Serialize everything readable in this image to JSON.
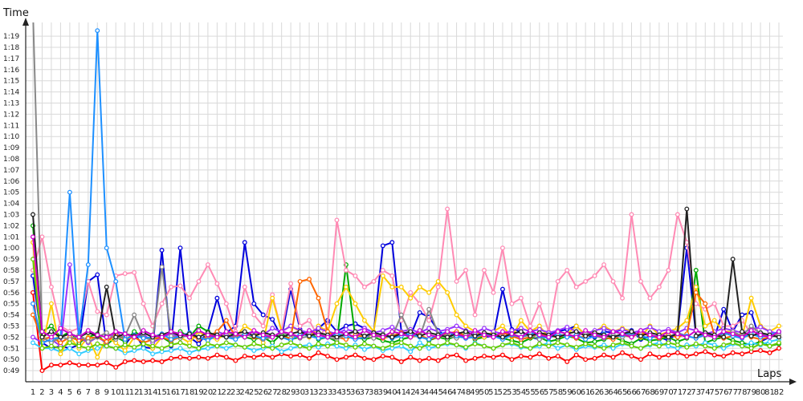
{
  "chart_data": {
    "type": "line",
    "title": "",
    "xlabel": "Laps",
    "ylabel": "Time",
    "grid": true,
    "legend": "none",
    "x_categories": [
      "1",
      "2",
      "3",
      "4",
      "5",
      "6",
      "7",
      "8",
      "9",
      "10",
      "11",
      "12",
      "13",
      "14",
      "15",
      "16",
      "17",
      "18",
      "19",
      "20",
      "21",
      "22",
      "23",
      "24",
      "25",
      "26",
      "27",
      "28",
      "29",
      "30",
      "31",
      "32",
      "33",
      "34",
      "35",
      "36",
      "37",
      "38",
      "39",
      "40",
      "41",
      "42",
      "43",
      "44",
      "45",
      "46",
      "47",
      "48",
      "49",
      "50",
      "51",
      "52",
      "53",
      "54",
      "55",
      "56",
      "57",
      "58",
      "59",
      "60",
      "61",
      "62",
      "63",
      "64",
      "65",
      "66",
      "67",
      "68",
      "69",
      "70",
      "71",
      "72",
      "73",
      "74",
      "75",
      "76",
      "77",
      "78",
      "79",
      "80",
      "81",
      "82"
    ],
    "y_ticks": [
      "0:49",
      "0:50",
      "0:51",
      "0:52",
      "0:53",
      "0:54",
      "0:55",
      "0:56",
      "0:57",
      "0:58",
      "0:59",
      "1:00",
      "1:01",
      "1:02",
      "1:03",
      "1:04",
      "1:05",
      "1:06",
      "1:07",
      "1:08",
      "1:09",
      "1:10",
      "1:11",
      "1:12",
      "1:13",
      "1:14",
      "1:15",
      "1:16",
      "1:17",
      "1:18",
      "1:19"
    ],
    "ylim_seconds": [
      48.2,
      81.3
    ],
    "series": [
      {
        "color": "#ff0000",
        "values": [
          56.0,
          49.0,
          49.5,
          49.5,
          49.7,
          49.5,
          49.5,
          49.5,
          49.7,
          49.3,
          49.8,
          49.9,
          49.8,
          49.9,
          49.8,
          50.1,
          50.2,
          50.1,
          50.2,
          50.1,
          50.4,
          50.2,
          49.9,
          50.3,
          50.2,
          50.4,
          50.2,
          50.5,
          50.3,
          50.4,
          50.1,
          50.6,
          50.3,
          50.0,
          50.2,
          50.4,
          50.1,
          50.0,
          50.3,
          50.2,
          49.8,
          50.2,
          49.9,
          50.1,
          49.9,
          50.3,
          50.4,
          49.9,
          50.1,
          50.3,
          50.2,
          50.4,
          50.0,
          50.3,
          50.2,
          50.5,
          50.1,
          50.3,
          49.8,
          50.4,
          50.0,
          50.1,
          50.4,
          50.2,
          50.6,
          50.3,
          50.0,
          50.5,
          50.2,
          50.4,
          50.6,
          50.3,
          50.5,
          50.7,
          50.4,
          50.3,
          50.6,
          50.5,
          50.7,
          50.8,
          50.6,
          51.0
        ]
      },
      {
        "color": "#0000dd",
        "values": [
          57.5,
          51.5,
          51.0,
          51.2,
          51.0,
          51.3,
          57.0,
          57.6,
          51.2,
          51.0,
          51.3,
          52.4,
          51.1,
          51.0,
          59.8,
          51.2,
          60.0,
          52.0,
          51.4,
          52.5,
          55.5,
          52.4,
          53.0,
          60.5,
          55.0,
          54.0,
          53.6,
          52.0,
          56.3,
          52.7,
          52.0,
          52.8,
          53.5,
          52.5,
          53.0,
          53.2,
          52.8,
          52.4,
          60.2,
          60.5,
          52.5,
          52.1,
          54.2,
          53.8,
          52.6,
          52.0,
          52.4,
          51.9,
          52.2,
          52.0,
          52.1,
          56.3,
          52.7,
          52.5,
          52.0,
          51.8,
          52.2,
          52.5,
          52.7,
          53.0,
          52.2,
          52.0,
          52.5,
          52.4,
          52.7,
          52.6,
          51.8,
          52.1,
          52.0,
          51.7,
          52.4,
          60.0,
          52.1,
          52.4,
          52.0,
          54.5,
          52.5,
          54.0,
          54.2,
          51.6,
          52.0,
          52.5
        ]
      },
      {
        "color": "#00aa00",
        "values": [
          62.0,
          52.5,
          53.0,
          52.0,
          52.5,
          51.5,
          52.0,
          52.3,
          51.3,
          52.0,
          51.6,
          52.5,
          52.0,
          51.8,
          52.0,
          51.5,
          52.5,
          52.0,
          53.0,
          52.5,
          52.0,
          52.5,
          52.2,
          52.0,
          51.8,
          52.0,
          51.5,
          52.3,
          51.8,
          52.0,
          52.5,
          51.8,
          52.0,
          51.6,
          58.5,
          52.0,
          51.8,
          52.0,
          51.7,
          51.5,
          51.8,
          52.0,
          52.2,
          51.7,
          52.0,
          51.8,
          52.1,
          52.3,
          51.8,
          52.0,
          52.4,
          51.9,
          51.7,
          51.5,
          51.9,
          52.0,
          51.6,
          51.8,
          52.1,
          51.9,
          51.5,
          51.6,
          51.8,
          52.0,
          51.7,
          51.4,
          51.9,
          51.7,
          51.8,
          52.0,
          51.6,
          51.9,
          58.0,
          51.5,
          51.8,
          52.0,
          51.7,
          51.5,
          51.3,
          51.6,
          51.2,
          51.4
        ]
      },
      {
        "color": "#ff8ab4",
        "values": [
          58.0,
          61.0,
          56.5,
          53.0,
          52.5,
          52.8,
          57.0,
          54.3,
          54.0,
          57.5,
          57.7,
          57.8,
          55.0,
          53.0,
          55.0,
          56.5,
          56.6,
          55.5,
          57.0,
          58.5,
          56.8,
          55.0,
          52.5,
          56.5,
          54.0,
          53.0,
          55.8,
          52.5,
          56.8,
          53.0,
          53.5,
          52.0,
          53.0,
          62.5,
          58.0,
          57.5,
          56.5,
          57.0,
          58.0,
          57.5,
          53.5,
          56.0,
          55.0,
          53.5,
          56.5,
          63.5,
          57.0,
          58.0,
          54.0,
          58.0,
          56.0,
          60.0,
          55.0,
          55.5,
          53.0,
          55.0,
          52.5,
          57.0,
          58.0,
          56.5,
          57.0,
          57.5,
          58.5,
          57.0,
          55.5,
          63.0,
          57.0,
          55.5,
          56.5,
          58.0,
          63.0,
          60.5,
          55.0,
          54.5,
          55.0,
          53.0,
          53.0,
          53.5,
          52.3,
          53.0,
          52.5,
          52.0
        ]
      },
      {
        "color": "#33ccff",
        "values": [
          51.5,
          51.0,
          51.0,
          50.7,
          51.0,
          50.5,
          50.8,
          51.0,
          51.2,
          51.0,
          50.6,
          50.8,
          51.0,
          50.5,
          50.7,
          50.8,
          51.0,
          50.6,
          50.9,
          51.0,
          51.2,
          51.0,
          51.3,
          51.1,
          50.8,
          51.0,
          51.2,
          50.7,
          51.0,
          51.2,
          51.3,
          51.1,
          51.4,
          51.2,
          51.0,
          51.3,
          50.9,
          51.2,
          50.8,
          51.0,
          51.2,
          50.7,
          51.5,
          51.0,
          51.2,
          51.4,
          51.3,
          51.0,
          51.5,
          51.2,
          51.0,
          51.3,
          51.4,
          51.1,
          51.0,
          51.2,
          51.5,
          51.0,
          51.3,
          50.9,
          51.2,
          51.1,
          51.3,
          51.0,
          51.4,
          51.2,
          51.0,
          51.3,
          51.5,
          51.2,
          51.0,
          51.3,
          51.2,
          51.5,
          51.3,
          51.0,
          51.4,
          51.2,
          51.5,
          51.3,
          51.6,
          51.8
        ]
      },
      {
        "color": "#ffcc00",
        "values": [
          60.5,
          51.0,
          55.0,
          50.5,
          52.0,
          51.0,
          52.0,
          50.2,
          52.0,
          51.5,
          50.8,
          52.0,
          51.5,
          51.0,
          52.0,
          52.5,
          52.0,
          51.5,
          52.5,
          52.0,
          51.8,
          52.3,
          52.0,
          53.0,
          52.5,
          51.5,
          55.5,
          52.5,
          53.0,
          52.5,
          52.0,
          53.0,
          52.5,
          55.0,
          56.5,
          55.0,
          53.5,
          52.5,
          57.5,
          56.5,
          56.5,
          55.5,
          56.5,
          56.0,
          57.0,
          56.0,
          54.0,
          53.0,
          52.5,
          52.0,
          52.5,
          53.0,
          52.0,
          53.5,
          52.5,
          53.0,
          52.0,
          52.5,
          52.3,
          53.0,
          52.2,
          52.5,
          53.0,
          52.5,
          52.8,
          52.5,
          52.0,
          53.0,
          52.2,
          52.5,
          52.8,
          53.5,
          56.5,
          53.0,
          53.5,
          52.5,
          52.5,
          52.0,
          55.5,
          53.0,
          52.5,
          53.0
        ]
      },
      {
        "color": "#9933ff",
        "values": [
          52.0,
          51.5,
          51.8,
          51.2,
          58.5,
          52.0,
          51.5,
          52.0,
          51.5,
          52.5,
          51.8,
          52.0,
          52.3,
          51.5,
          52.0,
          52.3,
          52.0,
          52.4,
          52.0,
          51.8,
          52.5,
          52.2,
          52.0,
          52.3,
          52.5,
          52.2,
          52.8,
          52.5,
          53.0,
          52.6,
          52.4,
          52.8,
          52.5,
          52.3,
          52.7,
          52.5,
          52.8,
          52.4,
          52.6,
          52.9,
          52.5,
          52.7,
          52.4,
          52.8,
          52.5,
          52.7,
          53.0,
          52.6,
          52.4,
          52.8,
          52.5,
          52.3,
          52.6,
          52.8,
          52.5,
          52.7,
          52.4,
          52.6,
          52.9,
          52.5,
          52.3,
          52.6,
          52.8,
          52.5,
          52.7,
          52.4,
          52.6,
          52.9,
          52.5,
          52.7,
          52.4,
          52.8,
          52.6,
          52.3,
          52.5,
          52.8,
          52.6,
          52.4,
          52.7,
          52.9,
          52.5,
          52.3
        ]
      },
      {
        "color": "#ff6600",
        "values": [
          54.0,
          51.8,
          52.0,
          51.5,
          52.0,
          51.7,
          51.9,
          52.0,
          51.6,
          52.2,
          51.8,
          52.0,
          51.5,
          51.8,
          52.0,
          51.7,
          52.0,
          52.3,
          51.8,
          52.0,
          52.5,
          53.5,
          52.0,
          52.3,
          52.0,
          51.8,
          52.2,
          52.0,
          51.9,
          57.0,
          57.2,
          55.5,
          52.5,
          52.0,
          51.8,
          52.2,
          52.0,
          52.3,
          51.9,
          52.1,
          52.4,
          52.0,
          52.2,
          51.8,
          52.0,
          52.3,
          52.5,
          52.1,
          51.9,
          52.2,
          52.0,
          52.4,
          52.1,
          51.8,
          52.0,
          52.3,
          52.1,
          52.0,
          52.2,
          51.9,
          52.1,
          52.3,
          52.0,
          51.8,
          52.2,
          52.0,
          52.4,
          52.1,
          51.9,
          52.2,
          52.0,
          52.3,
          56.0,
          55.0,
          52.2,
          51.9,
          52.1,
          52.3,
          52.0,
          51.8,
          52.0,
          52.2
        ]
      },
      {
        "color": "#888888",
        "values": [
          81.3,
          52.0,
          51.5,
          52.0,
          51.8,
          52.2,
          51.6,
          52.0,
          52.4,
          51.8,
          52.1,
          54.0,
          52.0,
          51.7,
          58.3,
          52.1,
          51.9,
          52.3,
          52.0,
          51.8,
          52.2,
          52.0,
          51.9,
          52.3,
          52.1,
          51.8,
          52.0,
          52.4,
          52.2,
          51.9,
          52.1,
          52.3,
          52.0,
          51.8,
          52.2,
          52.5,
          52.1,
          51.9,
          52.3,
          52.0,
          54.0,
          52.2,
          52.0,
          54.5,
          52.3,
          52.1,
          51.9,
          52.2,
          52.0,
          52.4,
          52.1,
          51.9,
          52.3,
          52.0,
          52.2,
          51.8,
          52.1,
          52.3,
          52.0,
          52.2,
          52.4,
          52.1,
          51.9,
          52.2,
          52.0,
          52.3,
          52.1,
          51.9,
          52.2,
          52.0,
          52.4,
          52.1,
          51.9,
          52.3,
          52.0,
          52.2,
          52.5,
          52.1,
          53.0,
          52.3,
          52.0,
          52.2
        ]
      },
      {
        "color": "#1e90ff",
        "values": [
          55.0,
          51.5,
          51.8,
          52.0,
          65.0,
          52.0,
          58.5,
          79.5,
          60.0,
          57.0,
          51.8,
          52.2,
          51.9,
          52.0,
          52.3,
          51.8,
          52.1,
          52.4,
          52.0,
          51.7,
          52.2,
          52.0,
          51.8,
          52.3,
          52.1,
          51.9,
          52.2,
          52.0,
          51.7,
          52.3,
          52.1,
          51.9,
          52.0,
          52.3,
          52.1,
          51.8,
          52.0,
          52.4,
          52.2,
          51.9,
          52.1,
          52.3,
          52.0,
          51.8,
          52.2,
          52.5,
          52.1,
          51.9,
          52.0,
          52.3,
          52.1,
          51.8,
          52.2,
          52.0,
          52.4,
          52.1,
          51.9,
          52.3,
          52.0,
          52.2,
          51.8,
          52.1,
          52.3,
          52.0,
          52.2,
          52.4,
          52.1,
          51.9,
          52.2,
          52.0,
          52.3,
          52.1,
          51.9,
          52.2,
          52.0,
          52.4,
          52.1,
          51.9,
          52.3,
          52.0,
          52.2,
          52.5
        ]
      },
      {
        "color": "#66cc00",
        "values": [
          59.0,
          51.0,
          51.2,
          51.0,
          51.5,
          51.2,
          51.0,
          51.4,
          51.2,
          51.0,
          51.3,
          51.1,
          51.4,
          51.2,
          51.0,
          51.3,
          51.5,
          51.2,
          51.0,
          51.4,
          51.2,
          51.5,
          51.3,
          51.1,
          51.4,
          51.2,
          51.0,
          51.3,
          51.5,
          51.2,
          51.0,
          51.4,
          51.2,
          51.5,
          51.3,
          51.1,
          51.4,
          51.2,
          51.0,
          51.3,
          51.5,
          51.2,
          51.0,
          51.4,
          51.2,
          51.5,
          51.3,
          51.1,
          51.4,
          51.2,
          51.0,
          51.3,
          51.5,
          51.2,
          51.0,
          51.4,
          51.2,
          51.5,
          51.3,
          51.1,
          51.4,
          51.2,
          51.0,
          51.3,
          51.5,
          51.2,
          51.0,
          51.4,
          51.2,
          51.5,
          51.3,
          51.1,
          51.4,
          51.2,
          51.0,
          51.3,
          51.5,
          51.2,
          51.0,
          51.4,
          51.2,
          51.5
        ]
      },
      {
        "color": "#222222",
        "values": [
          63.0,
          52.0,
          52.5,
          52.0,
          52.3,
          52.0,
          52.4,
          52.1,
          56.5,
          52.0,
          52.3,
          52.1,
          52.4,
          52.0,
          52.2,
          52.5,
          52.1,
          52.3,
          52.0,
          52.4,
          52.2,
          52.0,
          52.3,
          52.5,
          52.1,
          52.4,
          52.2,
          52.0,
          52.3,
          52.5,
          52.1,
          52.4,
          52.2,
          52.0,
          52.3,
          52.5,
          52.1,
          52.4,
          52.2,
          52.0,
          52.3,
          52.5,
          52.1,
          52.4,
          52.2,
          52.0,
          52.3,
          52.5,
          52.1,
          52.4,
          52.2,
          52.0,
          52.3,
          52.5,
          52.1,
          52.4,
          52.2,
          52.0,
          52.3,
          52.5,
          52.1,
          52.4,
          52.2,
          52.0,
          52.3,
          52.5,
          52.1,
          52.4,
          52.2,
          52.0,
          52.3,
          63.5,
          52.1,
          52.4,
          52.2,
          52.0,
          59.0,
          52.5,
          52.1,
          52.4,
          52.2,
          52.0
        ]
      },
      {
        "color": "#cc00cc",
        "values": [
          61.0,
          52.5,
          52.0,
          52.8,
          52.3,
          52.0,
          52.6,
          52.2,
          52.0,
          52.5,
          52.3,
          52.0,
          52.6,
          52.2,
          52.0,
          52.5,
          52.3,
          52.0,
          52.6,
          52.2,
          52.0,
          52.5,
          52.3,
          52.0,
          52.6,
          52.2,
          52.0,
          52.5,
          52.3,
          52.0,
          52.6,
          52.2,
          52.0,
          52.5,
          52.3,
          52.0,
          52.6,
          52.2,
          52.0,
          52.5,
          52.3,
          52.0,
          52.6,
          52.2,
          52.0,
          52.5,
          52.3,
          52.0,
          52.6,
          52.2,
          52.0,
          52.5,
          52.3,
          52.0,
          52.6,
          52.2,
          52.0,
          52.5,
          52.3,
          52.0,
          52.6,
          52.2,
          52.0,
          52.5,
          52.3,
          52.0,
          52.6,
          52.2,
          52.0,
          52.5,
          52.3,
          52.0,
          52.6,
          52.2,
          52.0,
          52.5,
          52.3,
          52.0,
          52.6,
          52.2,
          52.0,
          52.5
        ]
      }
    ]
  }
}
